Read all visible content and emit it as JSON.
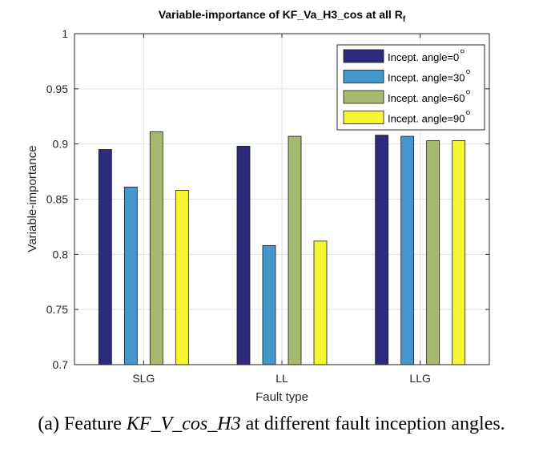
{
  "chart_data": {
    "type": "bar",
    "title": "Variable-importance of KF_Va_H3_cos at all R",
    "title_subscript": "f",
    "xlabel": "Fault type",
    "ylabel": "Variable-importance",
    "categories": [
      "SLG",
      "LL",
      "LLG"
    ],
    "ylim": [
      0.7,
      1.0
    ],
    "yticks": [
      0.7,
      0.75,
      0.8,
      0.85,
      0.9,
      0.95,
      1
    ],
    "ytick_labels": [
      "0.7",
      "0.75",
      "0.8",
      "0.85",
      "0.9",
      "0.95",
      "1"
    ],
    "grid": true,
    "legend_position": "top-right",
    "series": [
      {
        "name": "Incept. angle=0",
        "color": "#2e2a7d",
        "values": [
          0.895,
          0.898,
          0.908
        ]
      },
      {
        "name": "Incept. angle=30",
        "color": "#4596cc",
        "values": [
          0.861,
          0.808,
          0.907
        ]
      },
      {
        "name": "Incept. angle=60",
        "color": "#a6b96f",
        "values": [
          0.911,
          0.907,
          0.903
        ]
      },
      {
        "name": "Incept. angle=90",
        "color": "#f5f532",
        "values": [
          0.858,
          0.812,
          0.903
        ]
      }
    ]
  },
  "caption": {
    "prefix": "(a) Feature ",
    "math": "KF_V_cos_H3",
    "suffix": " at different fault inception angles."
  }
}
